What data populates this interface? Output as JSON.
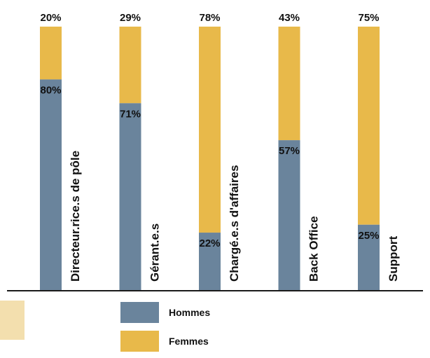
{
  "chart_data": {
    "type": "bar",
    "stacked": true,
    "percent": true,
    "categories": [
      "Directeur.rice.s de pôle",
      "Gérant.e.s",
      "Chargé.e.s d'affaires",
      "Back Office",
      "Support"
    ],
    "series": [
      {
        "name": "Hommes",
        "values": [
          80,
          71,
          22,
          57,
          25
        ],
        "labels": [
          "80%",
          "71%",
          "22%",
          "57%",
          "25%"
        ],
        "color": "#6a849c"
      },
      {
        "name": "Femmes",
        "values": [
          20,
          29,
          78,
          43,
          75
        ],
        "labels": [
          "20%",
          "29%",
          "78%",
          "43%",
          "75%"
        ],
        "color": "#e8b94a"
      }
    ],
    "ylim": [
      0,
      100
    ],
    "grid": false,
    "legend_position": "bottom"
  },
  "colors": {
    "baseline": "#1a1a1a",
    "text": "#111111",
    "side_swatch": "#f3dfae"
  }
}
